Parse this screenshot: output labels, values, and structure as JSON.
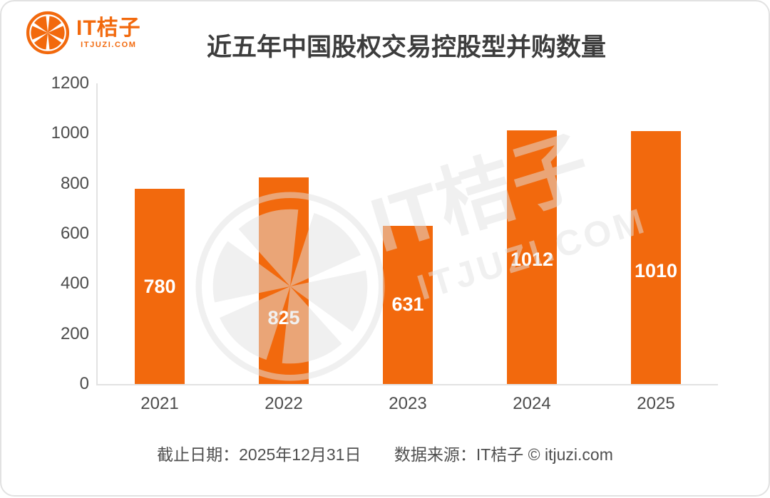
{
  "brand": {
    "logo_title": "IT桔子",
    "logo_subtitle": "ITJUZI.COM",
    "accent_color": "#F2690D"
  },
  "title": "近五年中国股权交易控股型并购数量",
  "chart_data": {
    "type": "bar",
    "title": "近五年中国股权交易控股型并购数量",
    "categories": [
      "2021",
      "2022",
      "2023",
      "2024",
      "2025"
    ],
    "values": [
      780,
      825,
      631,
      1012,
      1010
    ],
    "xlabel": "",
    "ylabel": "",
    "ylim": [
      0,
      1200
    ],
    "y_ticks": [
      0,
      200,
      400,
      600,
      800,
      1000,
      1200
    ],
    "grid": false,
    "legend": null,
    "bar_color": "#F2690D",
    "value_label_color": "#FFFFFF",
    "deadline_note": "截止日期：2025年12月31日",
    "source_note": "数据来源：IT桔子 © itjuzi.com"
  },
  "watermark": {
    "text_primary": "IT桔子",
    "text_secondary": "ITJUZI.COM"
  }
}
